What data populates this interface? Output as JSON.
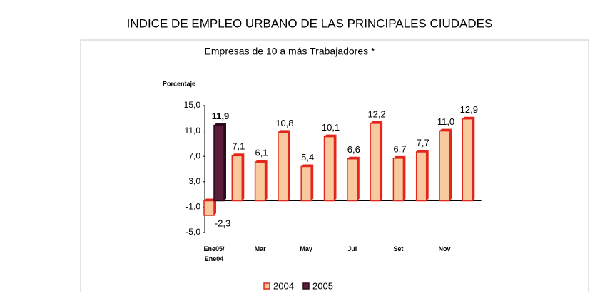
{
  "chart_data": {
    "type": "bar",
    "title": "INDICE DE EMPLEO URBANO DE LAS PRINCIPALES CIUDADES",
    "subtitle": "Empresas de 10 a más Trabajadores *",
    "y_label": "Porcentaje",
    "categories": [
      "Ene05/ Ene04",
      null,
      "Mar",
      null,
      "May",
      null,
      "Jul",
      null,
      "Set",
      null,
      "Nov",
      null
    ],
    "series": [
      {
        "name": "2004",
        "color": "#f8c99c",
        "edgecolor": "#e3261c",
        "values": [
          -2.3,
          7.1,
          6.1,
          10.8,
          5.4,
          10.1,
          6.6,
          12.2,
          6.7,
          7.7,
          11.0,
          12.9
        ],
        "value_labels": [
          "-2,3",
          "7,1",
          "6,1",
          "10,8",
          "5,4",
          "10,1",
          "6,6",
          "12,2",
          "6,7",
          "7,7",
          "11,0",
          "12,9"
        ]
      },
      {
        "name": "2005",
        "color": "#5b1d3c",
        "edgecolor": "#2a0a1a",
        "values": [
          11.9,
          null,
          null,
          null,
          null,
          null,
          null,
          null,
          null,
          null,
          null,
          null
        ],
        "value_labels": [
          "11,9",
          null,
          null,
          null,
          null,
          null,
          null,
          null,
          null,
          null,
          null,
          null
        ]
      }
    ],
    "ylim": [
      -5,
      15
    ],
    "yticks": [
      {
        "value": -5,
        "label": "-5,0"
      },
      {
        "value": -1,
        "label": "-1,0"
      },
      {
        "value": 3,
        "label": "3,0"
      },
      {
        "value": 7,
        "label": "7,0"
      },
      {
        "value": 11,
        "label": "11,0"
      },
      {
        "value": 15,
        "label": "15,0"
      }
    ],
    "legend": "bottom"
  }
}
